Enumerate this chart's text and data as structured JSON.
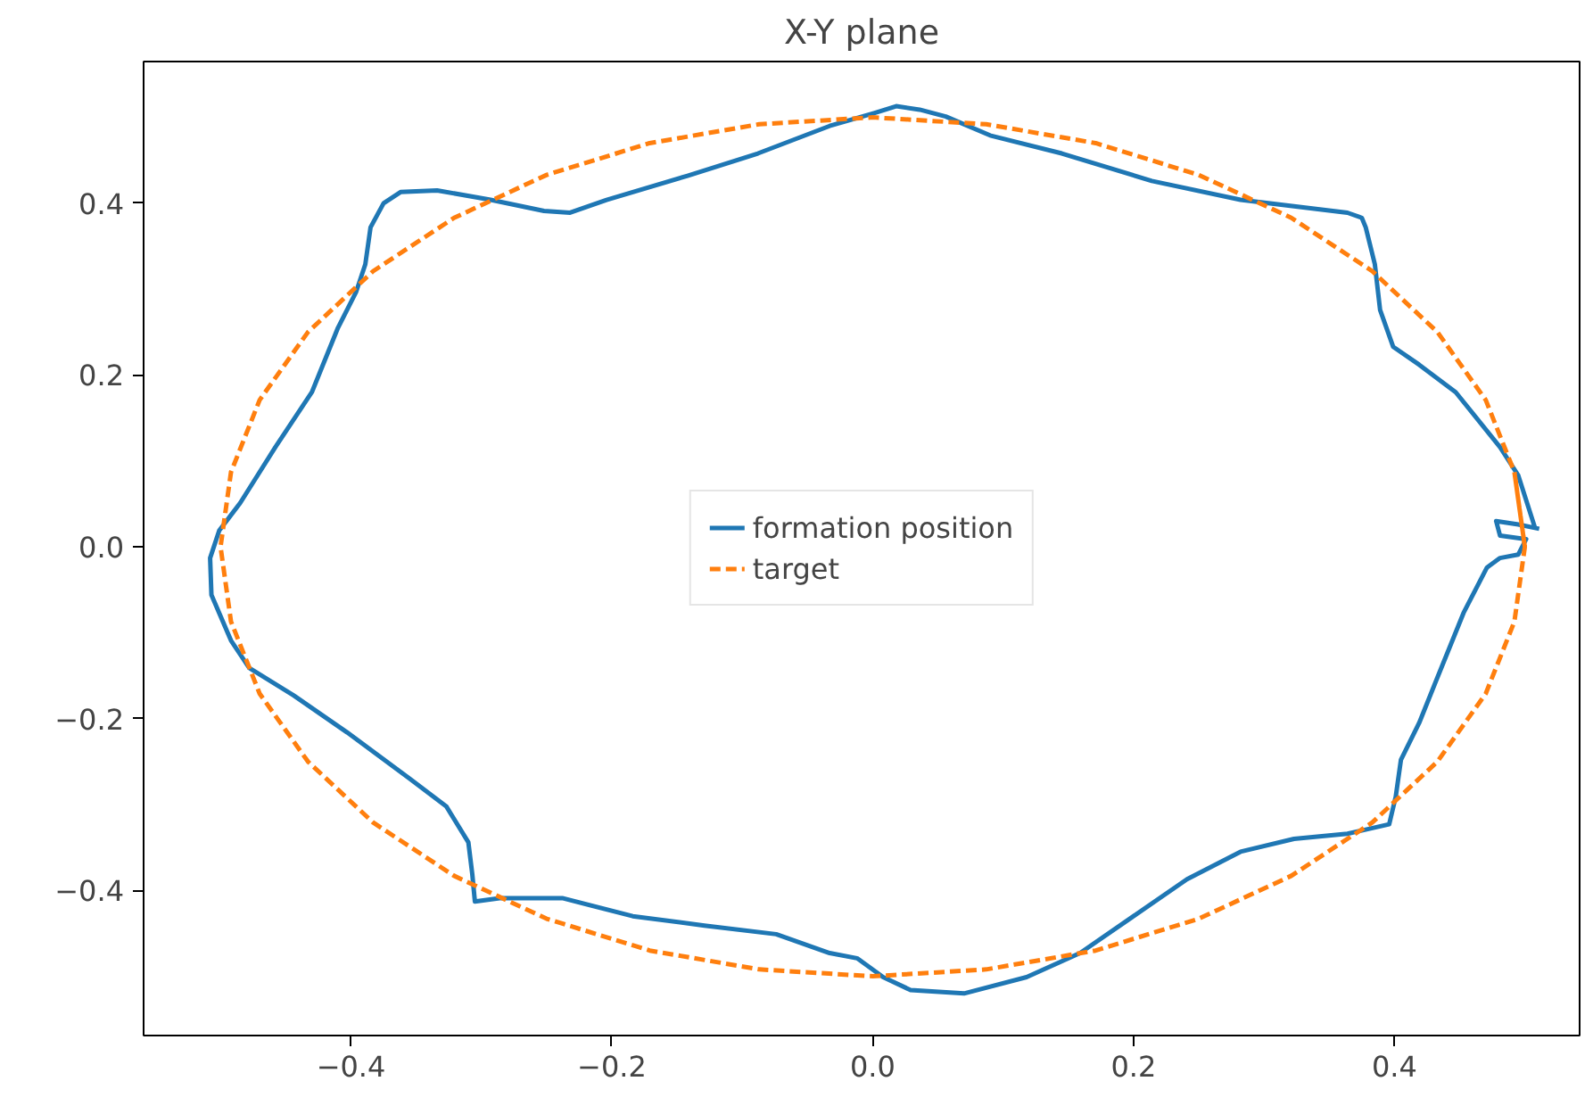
{
  "chart_data": {
    "type": "line",
    "title": "X-Y plane",
    "legend": "center",
    "grid": false,
    "xlim": [
      -0.559,
      0.542
    ],
    "ylim": [
      -0.569,
      0.565
    ],
    "xticks": [
      {
        "value": -0.4,
        "label": "−0.4"
      },
      {
        "value": -0.2,
        "label": "−0.2"
      },
      {
        "value": 0.0,
        "label": "0.0"
      },
      {
        "value": 0.2,
        "label": "0.2"
      },
      {
        "value": 0.4,
        "label": "0.4"
      }
    ],
    "yticks": [
      {
        "value": -0.4,
        "label": "−0.4"
      },
      {
        "value": -0.2,
        "label": "−0.2"
      },
      {
        "value": 0.0,
        "label": "0.0"
      },
      {
        "value": 0.2,
        "label": "0.2"
      },
      {
        "value": 0.4,
        "label": "0.4"
      }
    ],
    "series": [
      {
        "name": "formation position",
        "color": "#1f77b4",
        "line_style": "solid",
        "x": [
          0.508,
          0.495,
          0.481,
          0.447,
          0.419,
          0.399,
          0.389,
          0.385,
          0.378,
          0.375,
          0.364,
          0.282,
          0.214,
          0.145,
          0.09,
          0.056,
          0.036,
          0.018,
          0.001,
          -0.033,
          -0.088,
          -0.142,
          -0.204,
          -0.232,
          -0.252,
          -0.293,
          -0.334,
          -0.362,
          -0.375,
          -0.385,
          -0.389,
          -0.396,
          -0.41,
          -0.43,
          -0.458,
          -0.485,
          -0.501,
          -0.508,
          -0.507,
          -0.492,
          -0.478,
          -0.444,
          -0.403,
          -0.355,
          -0.327,
          -0.31,
          -0.307,
          -0.305,
          -0.286,
          -0.238,
          -0.184,
          -0.129,
          -0.074,
          -0.033,
          -0.012,
          0.008,
          0.029,
          0.07,
          0.118,
          0.159,
          0.2,
          0.241,
          0.282,
          0.323,
          0.364,
          0.396,
          0.401,
          0.405,
          0.419,
          0.433,
          0.453,
          0.471,
          0.481,
          0.495,
          0.501,
          0.481,
          0.478,
          0.495,
          0.511
        ],
        "values": [
          0.021,
          0.083,
          0.116,
          0.18,
          0.212,
          0.233,
          0.276,
          0.329,
          0.372,
          0.383,
          0.389,
          0.404,
          0.426,
          0.458,
          0.479,
          0.501,
          0.509,
          0.513,
          0.505,
          0.49,
          0.458,
          0.432,
          0.404,
          0.389,
          0.391,
          0.404,
          0.415,
          0.413,
          0.4,
          0.372,
          0.329,
          0.297,
          0.255,
          0.18,
          0.116,
          0.051,
          0.019,
          -0.013,
          -0.056,
          -0.109,
          -0.141,
          -0.173,
          -0.216,
          -0.27,
          -0.302,
          -0.344,
          -0.381,
          -0.413,
          -0.409,
          -0.409,
          -0.43,
          -0.441,
          -0.451,
          -0.473,
          -0.479,
          -0.501,
          -0.516,
          -0.52,
          -0.501,
          -0.473,
          -0.43,
          -0.387,
          -0.355,
          -0.34,
          -0.334,
          -0.323,
          -0.291,
          -0.248,
          -0.205,
          -0.152,
          -0.077,
          -0.024,
          -0.013,
          -0.009,
          0.009,
          0.013,
          0.03,
          0.026,
          0.021
        ]
      },
      {
        "name": "target",
        "color": "#ff7f0e",
        "line_style": "dashed",
        "x": [
          0.5,
          0.492,
          0.47,
          0.433,
          0.383,
          0.321,
          0.25,
          0.171,
          0.087,
          0.0,
          -0.087,
          -0.171,
          -0.25,
          -0.321,
          -0.383,
          -0.433,
          -0.47,
          -0.492,
          -0.5,
          -0.492,
          -0.47,
          -0.433,
          -0.383,
          -0.321,
          -0.25,
          -0.171,
          -0.087,
          0.0,
          0.087,
          0.171,
          0.25,
          0.321,
          0.383,
          0.433,
          0.47,
          0.492,
          0.5,
          0.492
        ],
        "values": [
          0.0,
          0.087,
          0.171,
          0.25,
          0.321,
          0.383,
          0.433,
          0.47,
          0.492,
          0.5,
          0.492,
          0.47,
          0.433,
          0.383,
          0.321,
          0.25,
          0.171,
          0.087,
          0.0,
          -0.087,
          -0.171,
          -0.25,
          -0.321,
          -0.383,
          -0.433,
          -0.47,
          -0.492,
          -0.5,
          -0.492,
          -0.47,
          -0.433,
          -0.383,
          -0.321,
          -0.25,
          -0.171,
          -0.087,
          0.0,
          0.087
        ]
      }
    ]
  }
}
